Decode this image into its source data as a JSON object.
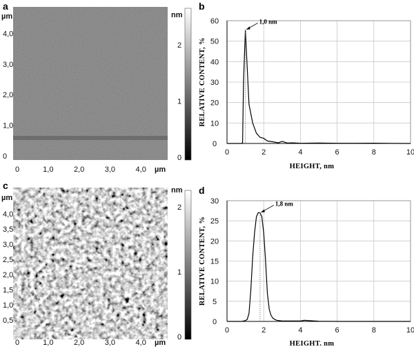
{
  "panels": [
    {
      "letter": "a"
    },
    {
      "letter": "b"
    },
    {
      "letter": "c"
    },
    {
      "letter": "d"
    }
  ],
  "afm_images": [
    {
      "id": "a",
      "x_unit": "µm",
      "y_unit": "µm",
      "colorbar_unit": "nm",
      "x_ticks": [
        "0",
        "1,0",
        "2,0",
        "3,0",
        "4,0"
      ],
      "y_ticks": [
        "0",
        "1,0",
        "2,0",
        "3,0",
        "4,0"
      ],
      "colorbar_ticks": [
        "0",
        "1",
        "2"
      ],
      "texture": "smooth"
    },
    {
      "id": "c",
      "x_unit": "µm",
      "y_unit": "µm",
      "colorbar_unit": "nm",
      "x_ticks": [
        "0",
        "1,0",
        "2,0",
        "3,0",
        "4,0"
      ],
      "y_ticks": [
        "0,5",
        "1,0",
        "1,5",
        "2,0",
        "2,5",
        "3,0",
        "3,5",
        "4,0"
      ],
      "colorbar_ticks": [
        "0",
        "1",
        "2"
      ],
      "texture": "porous"
    }
  ],
  "chart_data": [
    {
      "id": "b",
      "type": "line",
      "xlabel": "HEIGHT, nm",
      "ylabel": "RELATIVE CONTENT, %",
      "xlim": [
        0,
        10
      ],
      "ylim": [
        0,
        60
      ],
      "x_ticks": [
        0,
        2,
        4,
        6,
        8,
        10
      ],
      "y_ticks": [
        0,
        10,
        20,
        30,
        40,
        50,
        60
      ],
      "grid": true,
      "annotation": {
        "text": "1,0 nm",
        "x": 1.0,
        "y": 55.5
      },
      "series": [
        {
          "x": [
            0,
            0.8,
            0.85,
            0.9,
            1.0,
            1.2,
            1.4,
            1.6,
            1.8,
            2.0,
            2.2,
            2.5,
            2.8,
            3.0,
            3.3,
            3.6,
            4.0,
            5.0,
            6.0,
            7.0,
            8.0,
            9.0,
            10.0
          ],
          "y": [
            0,
            0,
            0.5,
            30,
            55.5,
            19,
            10,
            5,
            3,
            2.5,
            1.2,
            0.8,
            0.3,
            1.0,
            0.2,
            0.3,
            0.1,
            0.2,
            0.1,
            0.1,
            0.15,
            0.05,
            0
          ]
        }
      ]
    },
    {
      "id": "d",
      "type": "line",
      "xlabel": "HEIGHT. nm",
      "ylabel": "RELATIVE CONTENT, %",
      "xlim": [
        0,
        10
      ],
      "ylim": [
        0,
        30
      ],
      "x_ticks": [
        0,
        2,
        4,
        6,
        8,
        10
      ],
      "y_ticks": [
        0,
        5,
        10,
        15,
        20,
        25,
        30
      ],
      "grid": true,
      "annotation": {
        "text": "1,8 nm",
        "x": 1.8,
        "y": 27
      },
      "series": [
        {
          "x": [
            0,
            0.8,
            1.0,
            1.1,
            1.2,
            1.3,
            1.4,
            1.5,
            1.6,
            1.7,
            1.8,
            1.9,
            2.0,
            2.1,
            2.2,
            2.3,
            2.4,
            2.5,
            2.6,
            2.7,
            3.0,
            4.0,
            4.2,
            5.0,
            6.0,
            8.0,
            10.0
          ],
          "y": [
            0,
            0,
            0.2,
            0.5,
            2,
            8,
            16,
            22,
            26,
            27,
            27,
            26,
            22,
            15,
            7,
            3,
            1.5,
            0.8,
            0.5,
            0.3,
            0.1,
            0.1,
            0.3,
            0.05,
            0,
            0,
            0
          ]
        }
      ]
    }
  ]
}
